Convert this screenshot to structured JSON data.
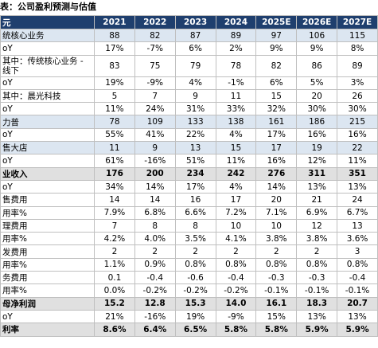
{
  "title": "表：公司盈利预测与估值",
  "table": {
    "header": [
      "元",
      "2021",
      "2022",
      "2023",
      "2024",
      "2025E",
      "2026E",
      "2027E"
    ],
    "rows": [
      [
        "统核心业务",
        "88",
        "82",
        "87",
        "89",
        "97",
        "106",
        "115"
      ],
      [
        "oY",
        "17%",
        "-7%",
        "6%",
        "2%",
        "9%",
        "9%",
        "8%"
      ],
      [
        "其中：传统核心业务 - 线下",
        "83",
        "75",
        "79",
        "78",
        "82",
        "86",
        "89"
      ],
      [
        "oY",
        "19%",
        "-9%",
        "4%",
        "-1%",
        "6%",
        "5%",
        "3%"
      ],
      [
        "其中：晨光科技",
        "5",
        "7",
        "9",
        "11",
        "15",
        "20",
        "26"
      ],
      [
        "oY",
        "11%",
        "24%",
        "31%",
        "33%",
        "32%",
        "30%",
        "30%"
      ],
      [
        "力普",
        "78",
        "109",
        "133",
        "138",
        "161",
        "186",
        "215"
      ],
      [
        "oY",
        "55%",
        "41%",
        "22%",
        "4%",
        "17%",
        "16%",
        "16%"
      ],
      [
        "售大店",
        "11",
        "9",
        "13",
        "15",
        "17",
        "19",
        "22"
      ],
      [
        "oY",
        "61%",
        "-16%",
        "51%",
        "11%",
        "16%",
        "12%",
        "11%"
      ],
      [
        "业收入",
        "176",
        "200",
        "234",
        "242",
        "276",
        "311",
        "351"
      ],
      [
        "oY",
        "34%",
        "14%",
        "17%",
        "4%",
        "14%",
        "13%",
        "13%"
      ],
      [
        "售费用",
        "14",
        "14",
        "16",
        "17",
        "20",
        "21",
        "24"
      ],
      [
        "用率%",
        "7.9%",
        "6.8%",
        "6.6%",
        "7.2%",
        "7.1%",
        "6.9%",
        "6.7%"
      ],
      [
        "理费用",
        "7",
        "8",
        "8",
        "10",
        "10",
        "12",
        "13"
      ],
      [
        "用率%",
        "4.2%",
        "4.0%",
        "3.5%",
        "4.1%",
        "3.8%",
        "3.8%",
        "3.6%"
      ],
      [
        "发费用",
        "2",
        "2",
        "2",
        "2",
        "2",
        "2",
        "3"
      ],
      [
        "用率%",
        "1.1%",
        "0.9%",
        "0.8%",
        "0.8%",
        "0.8%",
        "0.8%",
        "0.8%"
      ],
      [
        "务费用",
        "0.1",
        "-0.4",
        "-0.6",
        "-0.4",
        "-0.3",
        "-0.3",
        "-0.4"
      ],
      [
        "用率%",
        "0.0%",
        "-0.2%",
        "-0.2%",
        "-0.2%",
        "-0.1%",
        "-0.1%",
        "-0.1%"
      ],
      [
        "母净利润",
        "15.2",
        "12.8",
        "15.3",
        "14.0",
        "16.1",
        "18.3",
        "20.7"
      ],
      [
        "oY",
        "21%",
        "-16%",
        "19%",
        "-9%",
        "15%",
        "13%",
        "13%"
      ],
      [
        "利率",
        "8.6%",
        "6.4%",
        "6.5%",
        "5.8%",
        "5.8%",
        "5.9%",
        "5.9%"
      ]
    ]
  }
}
